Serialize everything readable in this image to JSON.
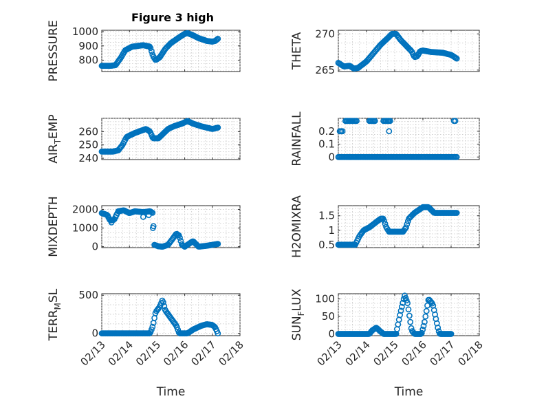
{
  "figure": {
    "title": "Figure 3 high",
    "marker_color": "#0072BD"
  },
  "chart_data": [
    {
      "type": "scatter",
      "title": "Figure 3 high",
      "xlabel": "",
      "ylabel": "PRESSURE",
      "ylim": [
        720,
        1010
      ],
      "yticks": [
        800,
        900,
        1000
      ],
      "xlim": [
        0,
        5
      ],
      "xticks": [
        0,
        1,
        2,
        3,
        4,
        5
      ],
      "xticklabels": [],
      "grid": true,
      "anchors": [
        [
          0.0,
          760
        ],
        [
          0.3,
          760
        ],
        [
          0.5,
          765
        ],
        [
          0.7,
          820
        ],
        [
          0.85,
          870
        ],
        [
          1.1,
          895
        ],
        [
          1.5,
          905
        ],
        [
          1.75,
          895
        ],
        [
          1.85,
          830
        ],
        [
          1.95,
          800
        ],
        [
          2.1,
          820
        ],
        [
          2.3,
          880
        ],
        [
          2.5,
          920
        ],
        [
          2.8,
          960
        ],
        [
          3.0,
          985
        ],
        [
          3.1,
          990
        ],
        [
          3.3,
          975
        ],
        [
          3.5,
          955
        ],
        [
          3.8,
          935
        ],
        [
          4.0,
          930
        ],
        [
          4.1,
          935
        ],
        [
          4.2,
          950
        ]
      ]
    },
    {
      "type": "scatter",
      "title": "",
      "xlabel": "",
      "ylabel": "THETA",
      "ylim": [
        264.8,
        270.5
      ],
      "yticks": [
        265,
        270
      ],
      "xlim": [
        0,
        5
      ],
      "xticks": [
        0,
        1,
        2,
        3,
        4,
        5
      ],
      "xticklabels": [],
      "grid": true,
      "anchors": [
        [
          0.0,
          266.0
        ],
        [
          0.2,
          265.5
        ],
        [
          0.4,
          265.6
        ],
        [
          0.55,
          265.2
        ],
        [
          0.7,
          265.3
        ],
        [
          1.0,
          266.2
        ],
        [
          1.5,
          268.5
        ],
        [
          1.8,
          269.6
        ],
        [
          1.9,
          270.0
        ],
        [
          2.05,
          270.0
        ],
        [
          2.2,
          269.2
        ],
        [
          2.5,
          268.0
        ],
        [
          2.6,
          267.6
        ],
        [
          2.7,
          266.8
        ],
        [
          2.8,
          266.9
        ],
        [
          2.9,
          267.6
        ],
        [
          3.0,
          267.7
        ],
        [
          3.3,
          267.5
        ],
        [
          3.7,
          267.4
        ],
        [
          4.0,
          267.1
        ],
        [
          4.2,
          266.6
        ]
      ]
    },
    {
      "type": "scatter",
      "title": "",
      "xlabel": "",
      "ylabel": "AIR_TEMP",
      "ylim": [
        239,
        270
      ],
      "yticks": [
        240,
        250,
        260
      ],
      "xlim": [
        0,
        5
      ],
      "xticks": [
        0,
        1,
        2,
        3,
        4,
        5
      ],
      "xticklabels": [],
      "grid": true,
      "anchors": [
        [
          0.0,
          245
        ],
        [
          0.4,
          245
        ],
        [
          0.6,
          246
        ],
        [
          0.75,
          250
        ],
        [
          0.9,
          256
        ],
        [
          1.2,
          259
        ],
        [
          1.6,
          262
        ],
        [
          1.75,
          260
        ],
        [
          1.85,
          255
        ],
        [
          2.05,
          255
        ],
        [
          2.2,
          258
        ],
        [
          2.4,
          262
        ],
        [
          2.6,
          264
        ],
        [
          2.9,
          266
        ],
        [
          3.1,
          268
        ],
        [
          3.3,
          266
        ],
        [
          3.6,
          264
        ],
        [
          4.0,
          262
        ],
        [
          4.2,
          263
        ]
      ]
    },
    {
      "type": "scatter",
      "title": "",
      "xlabel": "",
      "ylabel": "RAINFALL",
      "ylim": [
        -0.02,
        0.3
      ],
      "yticks": [
        0,
        0.1,
        0.2
      ],
      "xlim": [
        0,
        5
      ],
      "xticks": [
        0,
        1,
        2,
        3,
        4,
        5
      ],
      "xticklabels": [],
      "grid": true,
      "zero_line": [
        0.0,
        4.2
      ],
      "rain_line_value": 0.28,
      "rain_line_ranges": [
        [
          0.25,
          0.65
        ],
        [
          1.1,
          1.3
        ],
        [
          1.6,
          1.85
        ]
      ],
      "extra_points": [
        [
          0.05,
          0.2
        ],
        [
          0.1,
          0.2
        ],
        [
          0.15,
          0.2
        ],
        [
          1.8,
          0.2
        ],
        [
          4.1,
          0.28
        ],
        [
          4.15,
          0.28
        ]
      ]
    },
    {
      "type": "scatter",
      "title": "",
      "xlabel": "",
      "ylabel": "MIXDEPTH",
      "ylim": [
        -50,
        2200
      ],
      "yticks": [
        0,
        1000,
        2000
      ],
      "xlim": [
        0,
        5
      ],
      "xticks": [
        0,
        1,
        2,
        3,
        4,
        5
      ],
      "xticklabels": [],
      "grid": true,
      "anchors": [
        [
          0.0,
          1800
        ],
        [
          0.2,
          1700
        ],
        [
          0.3,
          1400
        ],
        [
          0.45,
          1450
        ],
        [
          0.6,
          1900
        ],
        [
          0.8,
          1950
        ],
        [
          1.0,
          1800
        ],
        [
          1.2,
          1900
        ],
        [
          1.5,
          1850
        ],
        [
          1.75,
          1900
        ],
        [
          1.85,
          1800
        ],
        [
          1.9,
          100
        ],
        [
          2.05,
          20
        ],
        [
          2.2,
          0
        ],
        [
          2.4,
          100
        ],
        [
          2.55,
          400
        ],
        [
          2.7,
          700
        ],
        [
          2.8,
          600
        ],
        [
          2.9,
          100
        ],
        [
          3.0,
          0
        ],
        [
          3.2,
          200
        ],
        [
          3.3,
          300
        ],
        [
          3.5,
          0
        ],
        [
          3.8,
          50
        ],
        [
          4.2,
          150
        ]
      ],
      "extra_points": [
        [
          1.85,
          1000
        ],
        [
          1.7,
          1700
        ],
        [
          1.5,
          1600
        ],
        [
          0.35,
          1300
        ]
      ]
    },
    {
      "type": "scatter",
      "title": "",
      "xlabel": "",
      "ylabel": "H2OMIXRA",
      "ylim": [
        0.4,
        1.85
      ],
      "yticks": [
        0.5,
        1,
        1.5
      ],
      "xlim": [
        0,
        5
      ],
      "xticks": [
        0,
        1,
        2,
        3,
        4,
        5
      ],
      "xticklabels": [],
      "grid": true,
      "anchors": [
        [
          0.0,
          0.5
        ],
        [
          0.6,
          0.5
        ],
        [
          0.75,
          0.8
        ],
        [
          0.9,
          1.0
        ],
        [
          1.1,
          1.1
        ],
        [
          1.3,
          1.25
        ],
        [
          1.5,
          1.4
        ],
        [
          1.6,
          1.4
        ],
        [
          1.7,
          1.1
        ],
        [
          1.8,
          0.95
        ],
        [
          2.0,
          0.95
        ],
        [
          2.3,
          0.95
        ],
        [
          2.4,
          1.1
        ],
        [
          2.5,
          1.4
        ],
        [
          2.7,
          1.6
        ],
        [
          3.0,
          1.8
        ],
        [
          3.2,
          1.8
        ],
        [
          3.4,
          1.6
        ],
        [
          4.2,
          1.6
        ]
      ]
    },
    {
      "type": "scatter",
      "title": "",
      "xlabel": "Time",
      "ylabel": "TERR_MSL",
      "ylim": [
        -30,
        520
      ],
      "yticks": [
        0,
        500
      ],
      "xlim": [
        0,
        5
      ],
      "xticks": [
        0,
        1,
        2,
        3,
        4,
        5
      ],
      "xticklabels": [
        "02/13",
        "02/14",
        "02/15",
        "02/16",
        "02/17",
        "02/18"
      ],
      "grid": true,
      "anchors": [
        [
          0.0,
          0
        ],
        [
          1.75,
          0
        ],
        [
          1.85,
          100
        ],
        [
          1.95,
          280
        ],
        [
          2.1,
          350
        ],
        [
          2.2,
          440
        ],
        [
          2.3,
          300
        ],
        [
          2.5,
          200
        ],
        [
          2.7,
          100
        ],
        [
          2.8,
          0
        ],
        [
          3.1,
          0
        ],
        [
          3.3,
          50
        ],
        [
          3.6,
          100
        ],
        [
          3.8,
          120
        ],
        [
          4.0,
          110
        ],
        [
          4.1,
          80
        ],
        [
          4.2,
          0
        ]
      ]
    },
    {
      "type": "scatter",
      "title": "",
      "xlabel": "Time",
      "ylabel": "SUN_FLUX",
      "ylim": [
        -5,
        115
      ],
      "yticks": [
        0,
        50,
        100
      ],
      "xlim": [
        0,
        5
      ],
      "xticks": [
        0,
        1,
        2,
        3,
        4,
        5
      ],
      "xticklabels": [
        "02/13",
        "02/14",
        "02/15",
        "02/16",
        "02/17",
        "02/18"
      ],
      "grid": true,
      "anchors": [
        [
          0.0,
          0
        ],
        [
          1.1,
          0
        ],
        [
          1.2,
          10
        ],
        [
          1.35,
          18
        ],
        [
          1.45,
          10
        ],
        [
          1.6,
          0
        ],
        [
          2.05,
          0
        ],
        [
          2.2,
          60
        ],
        [
          2.35,
          110
        ],
        [
          2.45,
          90
        ],
        [
          2.6,
          10
        ],
        [
          2.7,
          0
        ],
        [
          2.95,
          0
        ],
        [
          3.05,
          30
        ],
        [
          3.2,
          100
        ],
        [
          3.35,
          85
        ],
        [
          3.55,
          10
        ],
        [
          3.6,
          0
        ],
        [
          4.0,
          0
        ]
      ]
    }
  ]
}
